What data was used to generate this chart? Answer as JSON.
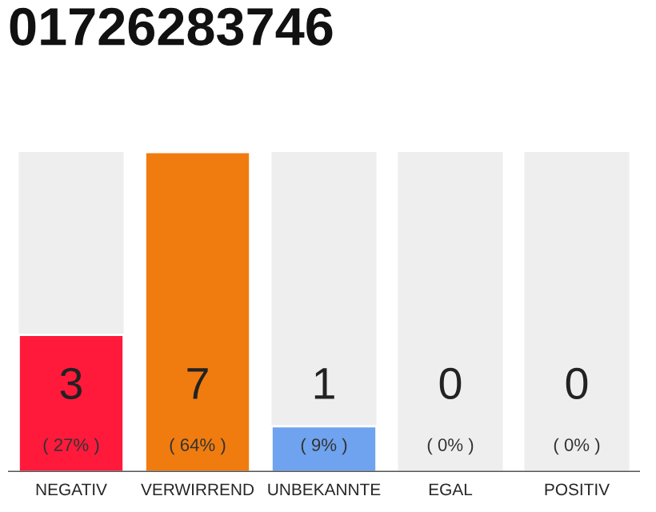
{
  "chart_data": {
    "type": "bar",
    "title": "01726283746",
    "categories": [
      "NEGATIV",
      "VERWIRREND",
      "UNBEKANNTE",
      "EGAL",
      "POSITIV"
    ],
    "values": [
      3,
      7,
      1,
      0,
      0
    ],
    "colors": [
      "#ff1a3c",
      "#f07c0f",
      "#6fa3ef",
      null,
      null
    ],
    "value_labels": [
      "3\n( 27% )",
      "7\n( 64% )",
      "1\n( 9% )",
      "0\n( 0% )",
      "0\n( 0% )"
    ],
    "grid": false,
    "legend": false
  }
}
